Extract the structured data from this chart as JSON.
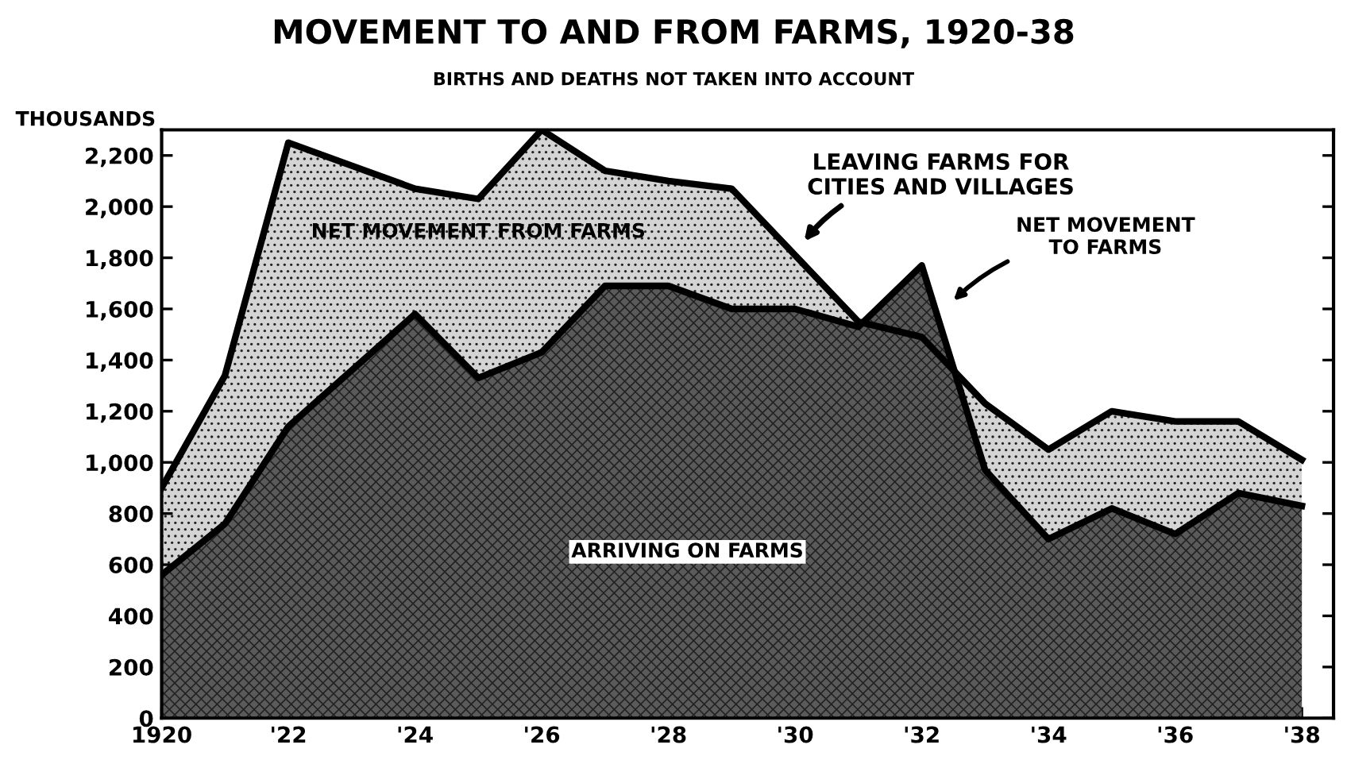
{
  "chart_data": {
    "type": "area",
    "title": "MOVEMENT TO AND FROM FARMS, 1920-38",
    "subtitle": "BIRTHS AND DEATHS NOT TAKEN INTO ACCOUNT",
    "ylabel": "THOUSANDS",
    "x": [
      1920,
      1921,
      1922,
      1923,
      1924,
      1925,
      1926,
      1927,
      1928,
      1929,
      1930,
      1931,
      1932,
      1933,
      1934,
      1935,
      1936,
      1937,
      1938
    ],
    "series": [
      {
        "name": "LEAVING FARMS FOR\nCITIES AND VILLAGES",
        "color": "#d4d4d4",
        "values": [
          900,
          1340,
          2250,
          2160,
          2070,
          2030,
          2300,
          2140,
          2100,
          2070,
          1810,
          1550,
          1490,
          1230,
          1050,
          1200,
          1160,
          1160,
          1010
        ]
      },
      {
        "name": "ARRIVING ON FARMS",
        "color": "#5a5a5a",
        "values": [
          560,
          760,
          1140,
          1360,
          1580,
          1330,
          1430,
          1690,
          1690,
          1600,
          1600,
          1530,
          1770,
          970,
          700,
          820,
          720,
          880,
          830
        ]
      }
    ],
    "annotations": [
      "NET MOVEMENT FROM FARMS",
      "NET MOVEMENT\nTO FARMS"
    ],
    "xlim": [
      1920,
      1938.5
    ],
    "ylim": [
      0,
      2300
    ],
    "xticks": [
      {
        "value": 1920,
        "label": "1920"
      },
      {
        "value": 1921,
        "label": null
      },
      {
        "value": 1922,
        "label": "'22"
      },
      {
        "value": 1923,
        "label": null
      },
      {
        "value": 1924,
        "label": "'24"
      },
      {
        "value": 1925,
        "label": null
      },
      {
        "value": 1926,
        "label": "'26"
      },
      {
        "value": 1927,
        "label": null
      },
      {
        "value": 1928,
        "label": "'28"
      },
      {
        "value": 1929,
        "label": null
      },
      {
        "value": 1930,
        "label": "'30"
      },
      {
        "value": 1931,
        "label": null
      },
      {
        "value": 1932,
        "label": "'32"
      },
      {
        "value": 1933,
        "label": null
      },
      {
        "value": 1934,
        "label": "'34"
      },
      {
        "value": 1935,
        "label": null
      },
      {
        "value": 1936,
        "label": "'36"
      },
      {
        "value": 1937,
        "label": null
      },
      {
        "value": 1938,
        "label": "'38"
      }
    ],
    "yticks": [
      0,
      200,
      400,
      600,
      800,
      {
        "value": 1000,
        "label": "1,000"
      },
      {
        "value": 1200,
        "label": "1,200"
      },
      {
        "value": 1400,
        "label": "1,400"
      },
      {
        "value": 1600,
        "label": "1,600"
      },
      {
        "value": 1800,
        "label": "1,800"
      },
      {
        "value": 2000,
        "label": "2,000"
      },
      {
        "value": 2200,
        "label": "2,200"
      }
    ],
    "grid": false,
    "legend": false
  }
}
